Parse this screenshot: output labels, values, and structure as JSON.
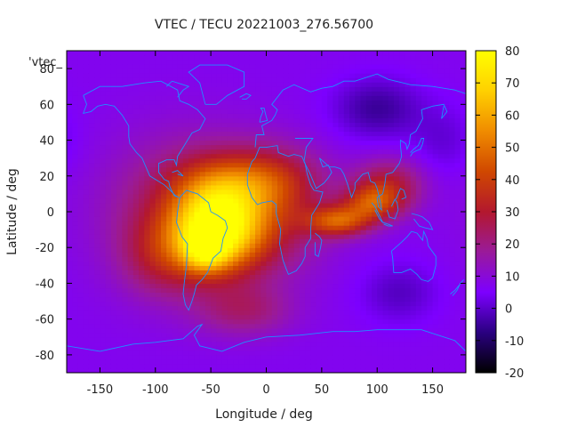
{
  "chart_data": {
    "type": "heatmap",
    "title": "VTEC / TECU 20221003_276.56700",
    "xlabel": "Longitude / deg",
    "ylabel": "Latitude / deg",
    "series_label": "'vtec_",
    "xlim": [
      -180,
      180
    ],
    "ylim": [
      -90,
      90
    ],
    "x_ticks": [
      -150,
      -100,
      -50,
      0,
      50,
      100,
      150
    ],
    "y_ticks": [
      -80,
      -60,
      -40,
      -20,
      0,
      20,
      40,
      60,
      80
    ],
    "colorbar": {
      "range": [
        -20,
        80
      ],
      "ticks": [
        -20,
        -10,
        0,
        10,
        20,
        30,
        40,
        50,
        60,
        70,
        80
      ],
      "palette": [
        "#000000",
        "#2a0080",
        "#7d00ff",
        "#9a1a9a",
        "#b3182e",
        "#d04800",
        "#f08c00",
        "#ffd000",
        "#ffff00"
      ]
    },
    "background_value": 7,
    "tec_features": [
      {
        "name": "equatorial-anomaly-americas-south",
        "lon": -45,
        "lat": -10,
        "value": 60,
        "sigma_lon": 28,
        "sigma_lat": 16
      },
      {
        "name": "southern-crest-south-america",
        "lon": -55,
        "lat": -22,
        "value": 25,
        "sigma_lon": 14,
        "sigma_lat": 8
      },
      {
        "name": "equatorial-belt-africa",
        "lon": 5,
        "lat": 0,
        "value": 18,
        "sigma_lon": 35,
        "sigma_lat": 22
      },
      {
        "name": "broad-daytime-region",
        "lon": -70,
        "lat": 0,
        "value": 20,
        "sigma_lon": 50,
        "sigma_lat": 28
      },
      {
        "name": "northern-crest-africa",
        "lon": 0,
        "lat": 18,
        "value": 18,
        "sigma_lon": 32,
        "sigma_lat": 12
      },
      {
        "name": "northern-crest-atlantic",
        "lon": -45,
        "lat": 15,
        "value": 15,
        "sigma_lon": 28,
        "sigma_lat": 12
      },
      {
        "name": "indian-ocean-streak",
        "lon": 65,
        "lat": -5,
        "value": 35,
        "sigma_lon": 20,
        "sigma_lat": 6
      },
      {
        "name": "indian-ocean-streak-east",
        "lon": 95,
        "lat": 5,
        "value": 28,
        "sigma_lon": 18,
        "sigma_lat": 7
      },
      {
        "name": "asia-north-streak",
        "lon": 110,
        "lat": 15,
        "value": 22,
        "sigma_lon": 22,
        "sigma_lat": 10
      },
      {
        "name": "southern-pacific-tongue",
        "lon": -95,
        "lat": -25,
        "value": 14,
        "sigma_lon": 25,
        "sigma_lat": 15
      },
      {
        "name": "southern-ocean-tongue",
        "lon": -20,
        "lat": -55,
        "value": 14,
        "sigma_lon": 30,
        "sigma_lat": 10
      },
      {
        "name": "siberia-depletion",
        "lon": 100,
        "lat": 58,
        "value": -12,
        "sigma_lon": 28,
        "sigma_lat": 12
      },
      {
        "name": "australia-south-depletion",
        "lon": 120,
        "lat": -45,
        "value": -8,
        "sigma_lon": 25,
        "sigma_lat": 12
      },
      {
        "name": "pacific-depletion",
        "lon": 160,
        "lat": 40,
        "value": -6,
        "sigma_lon": 20,
        "sigma_lat": 14
      }
    ],
    "coastline_lon_lat": [
      [
        [
          -165,
          65
        ],
        [
          -150,
          70
        ],
        [
          -130,
          70
        ],
        [
          -110,
          72
        ],
        [
          -95,
          73
        ],
        [
          -80,
          68
        ],
        [
          -78,
          62
        ],
        [
          -70,
          60
        ],
        [
          -62,
          57
        ],
        [
          -55,
          52
        ],
        [
          -60,
          46
        ],
        [
          -67,
          44
        ],
        [
          -70,
          41
        ],
        [
          -75,
          36
        ],
        [
          -80,
          31
        ],
        [
          -81,
          26
        ],
        [
          -83,
          29
        ],
        [
          -90,
          29
        ],
        [
          -97,
          27
        ],
        [
          -97,
          22
        ],
        [
          -92,
          18
        ],
        [
          -88,
          17
        ],
        [
          -87,
          14
        ],
        [
          -83,
          9
        ],
        [
          -79,
          8
        ],
        [
          -82,
          9
        ],
        [
          -85,
          11
        ],
        [
          -92,
          15
        ],
        [
          -105,
          20
        ],
        [
          -112,
          30
        ],
        [
          -117,
          33
        ],
        [
          -123,
          38
        ],
        [
          -124,
          42
        ],
        [
          -124,
          48
        ],
        [
          -130,
          54
        ],
        [
          -137,
          59
        ],
        [
          -145,
          60
        ],
        [
          -152,
          59
        ],
        [
          -158,
          56
        ],
        [
          -165,
          55
        ],
        [
          -162,
          60
        ],
        [
          -165,
          65
        ]
      ],
      [
        [
          -78,
          8
        ],
        [
          -72,
          12
        ],
        [
          -62,
          10
        ],
        [
          -52,
          5
        ],
        [
          -50,
          0
        ],
        [
          -44,
          -2
        ],
        [
          -37,
          -5
        ],
        [
          -35,
          -9
        ],
        [
          -39,
          -15
        ],
        [
          -41,
          -22
        ],
        [
          -48,
          -26
        ],
        [
          -53,
          -34
        ],
        [
          -58,
          -38
        ],
        [
          -63,
          -41
        ],
        [
          -65,
          -46
        ],
        [
          -67,
          -50
        ],
        [
          -70,
          -55
        ],
        [
          -73,
          -52
        ],
        [
          -75,
          -46
        ],
        [
          -74,
          -40
        ],
        [
          -72,
          -30
        ],
        [
          -71,
          -18
        ],
        [
          -76,
          -14
        ],
        [
          -81,
          -6
        ],
        [
          -80,
          0
        ],
        [
          -78,
          8
        ]
      ],
      [
        [
          -55,
          60
        ],
        [
          -45,
          60
        ],
        [
          -35,
          65
        ],
        [
          -20,
          70
        ],
        [
          -20,
          78
        ],
        [
          -35,
          82
        ],
        [
          -60,
          82
        ],
        [
          -70,
          78
        ],
        [
          -60,
          72
        ],
        [
          -55,
          60
        ]
      ],
      [
        [
          -17,
          15
        ],
        [
          -17,
          21
        ],
        [
          -13,
          28
        ],
        [
          -10,
          30
        ],
        [
          -6,
          36
        ],
        [
          0,
          36
        ],
        [
          10,
          37
        ],
        [
          11,
          33
        ],
        [
          20,
          31
        ],
        [
          25,
          32
        ],
        [
          32,
          31
        ],
        [
          35,
          27
        ],
        [
          37,
          21
        ],
        [
          40,
          15
        ],
        [
          43,
          12
        ],
        [
          51,
          11
        ],
        [
          48,
          5
        ],
        [
          41,
          -2
        ],
        [
          40,
          -10
        ],
        [
          40,
          -15
        ],
        [
          35,
          -20
        ],
        [
          35,
          -25
        ],
        [
          32,
          -29
        ],
        [
          27,
          -33
        ],
        [
          20,
          -35
        ],
        [
          18,
          -32
        ],
        [
          15,
          -27
        ],
        [
          12,
          -18
        ],
        [
          13,
          -10
        ],
        [
          9,
          -1
        ],
        [
          9,
          4
        ],
        [
          5,
          6
        ],
        [
          -4,
          5
        ],
        [
          -8,
          4
        ],
        [
          -13,
          8
        ],
        [
          -17,
          15
        ]
      ],
      [
        [
          -10,
          36
        ],
        [
          -9,
          43
        ],
        [
          -2,
          43
        ],
        [
          -4,
          48
        ],
        [
          5,
          51
        ],
        [
          8,
          54
        ],
        [
          10,
          57
        ],
        [
          5,
          60
        ],
        [
          10,
          64
        ],
        [
          15,
          68
        ],
        [
          25,
          71
        ],
        [
          40,
          67
        ],
        [
          50,
          69
        ],
        [
          60,
          70
        ],
        [
          70,
          73
        ],
        [
          80,
          73
        ],
        [
          100,
          77
        ],
        [
          110,
          74
        ],
        [
          130,
          71
        ],
        [
          150,
          70
        ],
        [
          160,
          69
        ],
        [
          170,
          68
        ],
        [
          180,
          66
        ]
      ],
      [
        [
          26,
          41
        ],
        [
          30,
          41
        ],
        [
          35,
          41
        ],
        [
          42,
          41
        ],
        [
          36,
          36
        ],
        [
          35,
          32
        ],
        [
          34,
          28
        ],
        [
          39,
          22
        ],
        [
          43,
          16
        ],
        [
          45,
          13
        ],
        [
          52,
          16
        ],
        [
          56,
          19
        ],
        [
          59,
          22
        ],
        [
          56,
          26
        ],
        [
          51,
          25
        ],
        [
          48,
          30
        ],
        [
          57,
          25
        ],
        [
          62,
          25
        ],
        [
          67,
          24
        ],
        [
          70,
          21
        ],
        [
          73,
          16
        ],
        [
          77,
          8
        ],
        [
          80,
          13
        ],
        [
          80,
          16
        ],
        [
          87,
          21
        ],
        [
          92,
          22
        ],
        [
          94,
          17
        ],
        [
          98,
          16
        ],
        [
          100,
          13
        ],
        [
          103,
          5
        ],
        [
          104,
          1
        ],
        [
          101,
          3
        ],
        [
          100,
          8
        ],
        [
          105,
          10
        ],
        [
          107,
          16
        ],
        [
          108,
          21
        ],
        [
          114,
          22
        ],
        [
          120,
          27
        ],
        [
          122,
          31
        ],
        [
          121,
          37
        ],
        [
          121,
          40
        ],
        [
          126,
          38
        ],
        [
          127,
          35
        ],
        [
          129,
          38
        ],
        [
          130,
          43
        ],
        [
          135,
          45
        ],
        [
          141,
          52
        ],
        [
          140,
          57
        ],
        [
          150,
          59
        ],
        [
          160,
          60
        ],
        [
          163,
          56
        ],
        [
          158,
          52
        ],
        [
          160,
          59
        ]
      ],
      [
        [
          113,
          -22
        ],
        [
          114,
          -26
        ],
        [
          115,
          -34
        ],
        [
          122,
          -34
        ],
        [
          130,
          -32
        ],
        [
          136,
          -35
        ],
        [
          140,
          -38
        ],
        [
          146,
          -39
        ],
        [
          150,
          -37
        ],
        [
          153,
          -30
        ],
        [
          153,
          -25
        ],
        [
          146,
          -19
        ],
        [
          145,
          -15
        ],
        [
          142,
          -11
        ],
        [
          141,
          -16
        ],
        [
          136,
          -12
        ],
        [
          131,
          -11
        ],
        [
          127,
          -14
        ],
        [
          122,
          -17
        ],
        [
          113,
          -22
        ]
      ],
      [
        [
          -180,
          -75
        ],
        [
          -150,
          -78
        ],
        [
          -120,
          -74
        ],
        [
          -100,
          -73
        ],
        [
          -75,
          -71
        ],
        [
          -62,
          -64
        ],
        [
          -58,
          -63
        ],
        [
          -65,
          -69
        ],
        [
          -60,
          -75
        ],
        [
          -40,
          -78
        ],
        [
          -20,
          -73
        ],
        [
          0,
          -70
        ],
        [
          30,
          -69
        ],
        [
          60,
          -67
        ],
        [
          80,
          -67
        ],
        [
          100,
          -66
        ],
        [
          120,
          -66
        ],
        [
          140,
          -66
        ],
        [
          160,
          -70
        ],
        [
          170,
          -72
        ],
        [
          180,
          -78
        ]
      ],
      [
        [
          130,
          31
        ],
        [
          132,
          33
        ],
        [
          135,
          34
        ],
        [
          139,
          35
        ],
        [
          141,
          38
        ],
        [
          142,
          41
        ],
        [
          140,
          41
        ],
        [
          137,
          37
        ],
        [
          133,
          35
        ],
        [
          130,
          33
        ]
      ],
      [
        [
          -6,
          50
        ],
        [
          -5,
          53
        ],
        [
          -3,
          56
        ],
        [
          -5,
          58
        ],
        [
          -2,
          58
        ],
        [
          0,
          53
        ],
        [
          1,
          51
        ],
        [
          -6,
          50
        ]
      ],
      [
        [
          95,
          5
        ],
        [
          98,
          3
        ],
        [
          102,
          -2
        ],
        [
          105,
          -6
        ],
        [
          102,
          -4
        ],
        [
          98,
          1
        ]
      ],
      [
        [
          105,
          -6
        ],
        [
          110,
          -7
        ],
        [
          114,
          -8
        ],
        [
          110,
          -8
        ],
        [
          106,
          -7
        ]
      ],
      [
        [
          109,
          1
        ],
        [
          111,
          -3
        ],
        [
          116,
          -4
        ],
        [
          119,
          1
        ],
        [
          118,
          5
        ],
        [
          116,
          7
        ],
        [
          113,
          3
        ]
      ],
      [
        [
          131,
          -1
        ],
        [
          137,
          -2
        ],
        [
          141,
          -3
        ],
        [
          147,
          -6
        ],
        [
          150,
          -10
        ],
        [
          143,
          -9
        ],
        [
          138,
          -8
        ],
        [
          133,
          -4
        ]
      ],
      [
        [
          44,
          -12
        ],
        [
          48,
          -14
        ],
        [
          50,
          -16
        ],
        [
          49,
          -20
        ],
        [
          47,
          -25
        ],
        [
          44,
          -24
        ],
        [
          44,
          -17
        ]
      ],
      [
        [
          166,
          -46
        ],
        [
          170,
          -44
        ],
        [
          174,
          -41
        ],
        [
          178,
          -38
        ],
        [
          175,
          -40
        ],
        [
          172,
          -44
        ],
        [
          168,
          -47
        ]
      ],
      [
        [
          -24,
          64
        ],
        [
          -18,
          66
        ],
        [
          -14,
          65
        ],
        [
          -18,
          63
        ],
        [
          -22,
          63
        ]
      ],
      [
        [
          117,
          7
        ],
        [
          121,
          13
        ],
        [
          124,
          12
        ],
        [
          126,
          8
        ],
        [
          122,
          7
        ]
      ],
      [
        [
          -85,
          22
        ],
        [
          -80,
          23
        ],
        [
          -75,
          20
        ],
        [
          -80,
          21
        ]
      ],
      [
        [
          -80,
          64
        ],
        [
          -75,
          68
        ],
        [
          -70,
          70
        ],
        [
          -85,
          73
        ],
        [
          -90,
          70
        ]
      ]
    ]
  }
}
